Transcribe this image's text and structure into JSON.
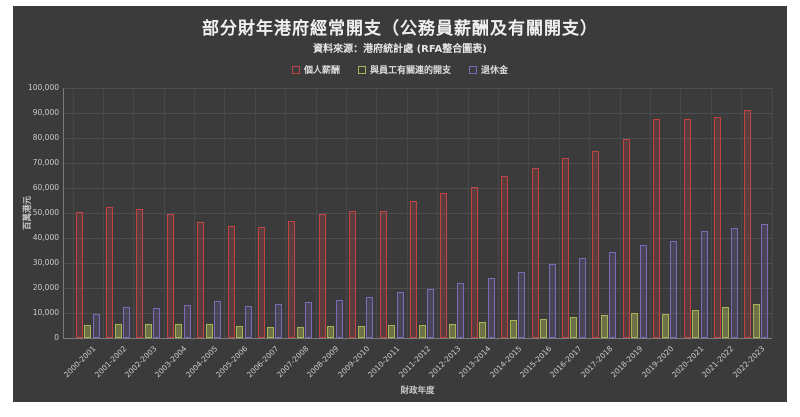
{
  "colors": {
    "panel_background": "#3b3b3b",
    "grid_horizontal": "#4e4e4e",
    "grid_vertical": "#484848",
    "axis_line": "#7a7a7a",
    "title_text": "#f0f0f0",
    "subtitle_text": "#e6e6e6",
    "legend_text": "#dcdcdc",
    "tick_text": "#c9c9c9"
  },
  "chart_data": {
    "type": "bar",
    "title": "部分財年港府經常開支（公務員薪酬及有關開支）",
    "subtitle": "資料來源：港府統計處 (RFA整合圖表)",
    "xlabel": "財政年度",
    "ylabel": "百萬港元",
    "ylim": [
      0,
      100000
    ],
    "ytick_step": 10000,
    "grid": true,
    "legend_position": "top",
    "categories": [
      "2000-2001",
      "2001-2002",
      "2002-2003",
      "2003-2004",
      "2004-2005",
      "2005-2006",
      "2006-2007",
      "2007-2008",
      "2008-2009",
      "2009-2010",
      "2010-2011",
      "2011-2012",
      "2012-2013",
      "2013-2014",
      "2014-2015",
      "2015-2016",
      "2016-2017",
      "2017-2018",
      "2018-2019",
      "2019-2020",
      "2020-2021",
      "2021-2022",
      "2022-2023"
    ],
    "series": [
      {
        "name": "個人薪酬",
        "color": "#c04444",
        "fill_opacity": 0.25,
        "values": [
          50500,
          52300,
          51500,
          49600,
          46500,
          45000,
          44500,
          46800,
          49500,
          50700,
          50900,
          54700,
          58100,
          60500,
          64700,
          68000,
          72000,
          74800,
          79500,
          87500,
          87500,
          88300,
          91200
        ]
      },
      {
        "name": "與員工有關連的開支",
        "color": "#a9b356",
        "fill_opacity": 0.45,
        "values": [
          5400,
          5800,
          5700,
          5800,
          5500,
          4700,
          4500,
          4500,
          4700,
          5000,
          5100,
          5300,
          5700,
          6300,
          7100,
          7700,
          8500,
          9400,
          10100,
          9700,
          11100,
          12500,
          13800
        ]
      },
      {
        "name": "退休金",
        "color": "#7b6ab8",
        "fill_opacity": 0.22,
        "values": [
          9800,
          12500,
          12100,
          13400,
          14900,
          12700,
          13700,
          14300,
          15200,
          16300,
          18500,
          19500,
          21900,
          23900,
          26500,
          29500,
          31900,
          34300,
          37200,
          38800,
          42700,
          43900,
          45600
        ]
      }
    ]
  }
}
